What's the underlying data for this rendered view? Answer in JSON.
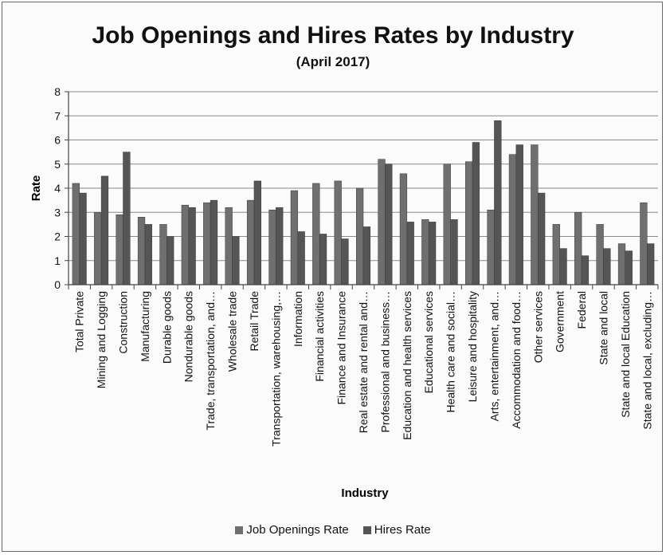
{
  "chart_data": {
    "type": "bar",
    "title": "Job Openings and Hires Rates by Industry",
    "subtitle": "(April 2017)",
    "xlabel": "Industry",
    "ylabel": "Rate",
    "ylim": [
      0,
      8
    ],
    "yticks": [
      "0",
      "1",
      "2",
      "3",
      "4",
      "5",
      "6",
      "7",
      "8"
    ],
    "grid": true,
    "legend_position": "bottom",
    "colors": {
      "job_openings": "#6f6f6f",
      "hires": "#555555"
    },
    "categories": [
      "Total Private",
      "Mining and Logging",
      "Construction",
      "Manufacturing",
      "Durable goods",
      "Nondurable goods",
      "Trade, transportation, and…",
      "Wholesale trade",
      "Retail Trade",
      "Transportation, warehousing,…",
      "Information",
      "Financial activities",
      "Finance and Insurance",
      "Real estate and rental and…",
      "Professional and business…",
      "Education and health services",
      "Educational services",
      "Health care and social…",
      "Leisure and hospitality",
      "Arts, entertainment, and…",
      "Accommodation and food…",
      "Other services",
      "Government",
      "Federal",
      "State and local",
      "State and local Education",
      "State and local, excluding…"
    ],
    "series": [
      {
        "name": "Job Openings Rate",
        "values": [
          4.2,
          3.0,
          2.9,
          2.8,
          2.5,
          3.3,
          3.4,
          3.2,
          3.5,
          3.1,
          3.9,
          4.2,
          4.3,
          4.0,
          5.2,
          4.6,
          2.7,
          5.0,
          5.1,
          3.1,
          5.4,
          5.8,
          2.5,
          3.0,
          2.5,
          1.7,
          3.4
        ]
      },
      {
        "name": "Hires Rate",
        "values": [
          3.8,
          4.5,
          5.5,
          2.5,
          2.0,
          3.2,
          3.5,
          2.0,
          4.3,
          3.2,
          2.2,
          2.1,
          1.9,
          2.4,
          5.0,
          2.6,
          2.6,
          2.7,
          5.9,
          6.8,
          5.8,
          3.8,
          1.5,
          1.2,
          1.5,
          1.4,
          1.7
        ]
      }
    ]
  }
}
